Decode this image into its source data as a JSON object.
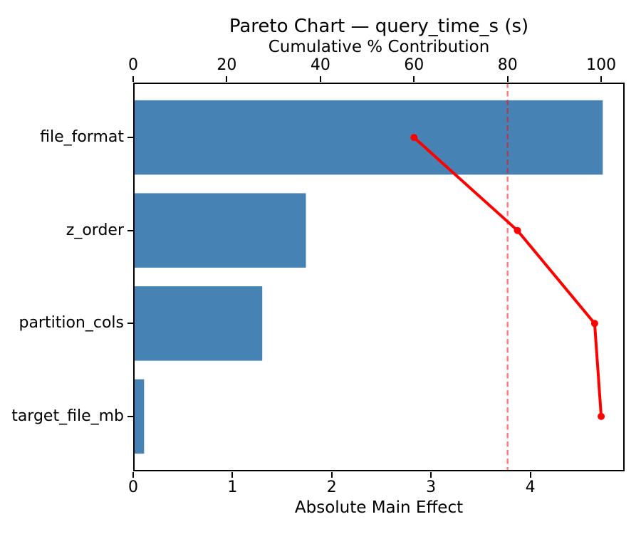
{
  "chart_data": {
    "type": "bar",
    "variant": "pareto",
    "orientation": "horizontal",
    "title": "Pareto Chart — query_time_s (s)",
    "categories": [
      "file_format",
      "z_order",
      "partition_cols",
      "target_file_mb"
    ],
    "series": [
      {
        "name": "Absolute Main Effect",
        "type": "bar",
        "axis": "bottom",
        "values": [
          4.73,
          1.74,
          1.3,
          0.11
        ]
      },
      {
        "name": "Cumulative % Contribution",
        "type": "line",
        "axis": "top",
        "values": [
          60.0,
          82.1,
          98.6,
          100.0
        ]
      }
    ],
    "bottom_axis": {
      "label": "Absolute Main Effect",
      "ticks": [
        0,
        1,
        2,
        3,
        4
      ],
      "range": [
        0,
        4.95
      ]
    },
    "top_axis": {
      "label": "Cumulative % Contribution",
      "ticks": [
        0,
        20,
        40,
        60,
        80,
        100
      ],
      "range": [
        0,
        105
      ]
    },
    "reference_line": {
      "axis": "top",
      "value": 80,
      "style": "dashed"
    },
    "colors": {
      "bar": "#4682b4",
      "line": "#ff0000",
      "reference": "#ff0000",
      "reference_opacity": 0.5,
      "text": "#000000",
      "frame": "#000000",
      "background": "#ffffff"
    },
    "legend": "none",
    "grid": false
  }
}
